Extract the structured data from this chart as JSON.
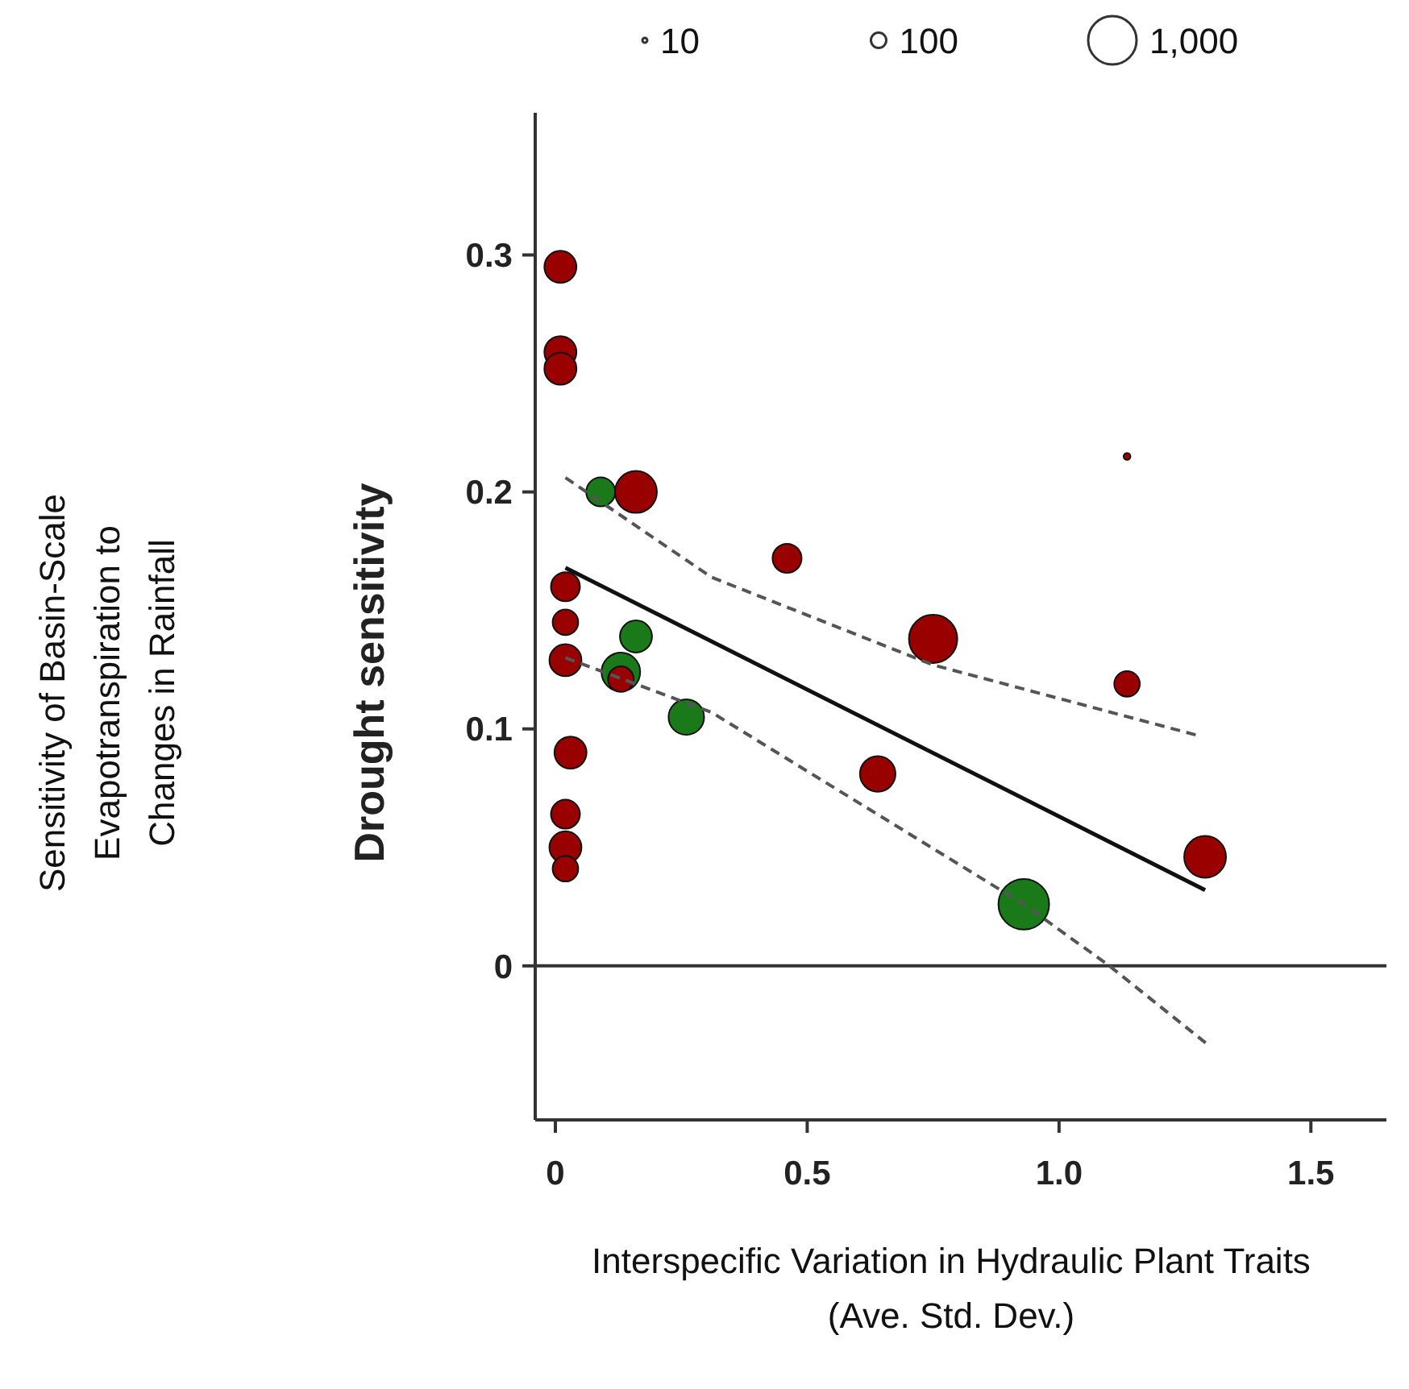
{
  "chart_data": {
    "type": "bubble",
    "xlabel": "Interspecific Variation in Hydraulic Plant Traits\n(Ave. Std. Dev.)",
    "ylabel": "Drought sensitivity",
    "annotations": [
      "Sensitivity of Basin-Scale\nEvapotranspiration to\nChanges in Rainfall"
    ],
    "xlim": [
      -0.04,
      1.65
    ],
    "ylim": [
      -0.065,
      0.36
    ],
    "xticks": [
      0,
      0.5,
      {
        "value": 1,
        "label": "1.0"
      },
      1.5
    ],
    "yticks": [
      0,
      0.1,
      0.2,
      0.3
    ],
    "size_legend": [
      10,
      100,
      {
        "value": 1000,
        "label": "1,000"
      }
    ],
    "ref_lines": [
      {
        "axis": "y",
        "value": 0,
        "color": "#333333"
      }
    ],
    "series": [
      {
        "color": "#1a7a1a",
        "x": [
          0.09,
          0.16,
          0.13,
          0.26,
          0.93
        ],
        "values": [
          0.2,
          0.139,
          0.124,
          0.105,
          0.026
        ],
        "sizes": [
          360,
          440,
          640,
          540,
          1100
        ]
      },
      {
        "color": "#990000",
        "x": [
          0.01,
          0.01,
          0.01,
          0.16,
          0.46,
          0.02,
          0.02,
          0.02,
          0.13,
          0.03,
          0.02,
          0.02,
          0.02,
          1.135,
          0.75,
          1.135,
          0.64,
          1.29
        ],
        "values": [
          0.295,
          0.259,
          0.252,
          0.2,
          0.172,
          0.16,
          0.145,
          0.129,
          0.121,
          0.09,
          0.064,
          0.05,
          0.041,
          0.215,
          0.138,
          0.119,
          0.081,
          0.046
        ],
        "sizes": [
          440,
          440,
          440,
          750,
          360,
          360,
          280,
          440,
          280,
          440,
          360,
          440,
          280,
          20,
          1000,
          280,
          540,
          750
        ]
      },
      {
        "type": "line",
        "color": "#111111",
        "line_style": "solid",
        "x": [
          0.02,
          1.29
        ],
        "values": [
          0.168,
          0.032
        ]
      },
      {
        "type": "line",
        "color": "#555555",
        "line_style": "dashed",
        "x": [
          0.02,
          0.31,
          0.75,
          1.28
        ],
        "values": [
          0.206,
          0.164,
          0.127,
          0.097
        ]
      },
      {
        "type": "line",
        "color": "#555555",
        "line_style": "dashed",
        "x": [
          0.02,
          0.31,
          0.93,
          1.1,
          1.3
        ],
        "values": [
          0.13,
          0.107,
          0.026,
          0,
          -0.034
        ]
      }
    ]
  }
}
